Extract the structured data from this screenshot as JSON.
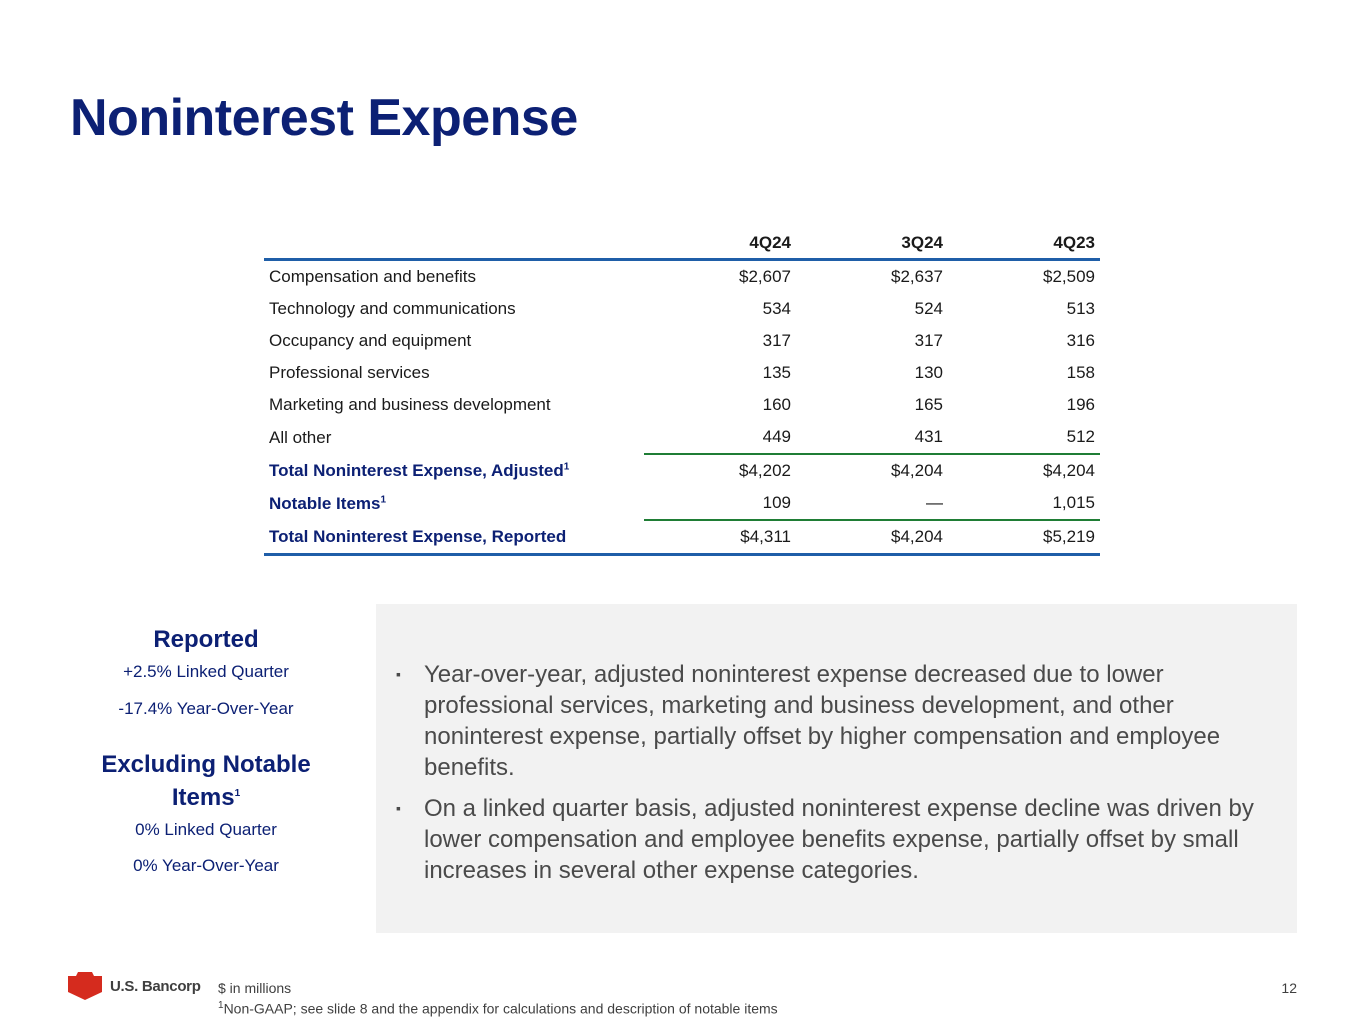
{
  "title": "Noninterest Expense",
  "table": {
    "headers": [
      "4Q24",
      "3Q24",
      "4Q23"
    ],
    "rows": [
      {
        "label": "Compensation and benefits",
        "values": [
          "$2,607",
          "$2,637",
          "$2,509"
        ]
      },
      {
        "label": "Technology and communications",
        "values": [
          "534",
          "524",
          "513"
        ]
      },
      {
        "label": "Occupancy and equipment",
        "values": [
          "317",
          "317",
          "316"
        ]
      },
      {
        "label": "Professional services",
        "values": [
          "135",
          "130",
          "158"
        ]
      },
      {
        "label": "Marketing and business development",
        "values": [
          "160",
          "165",
          "196"
        ]
      },
      {
        "label": "All other",
        "values": [
          "449",
          "431",
          "512"
        ]
      },
      {
        "label": "Total Noninterest Expense, Adjusted",
        "sup": "1",
        "values": [
          "$4,202",
          "$4,204",
          "$4,204"
        ]
      },
      {
        "label": "Notable Items",
        "sup": "1",
        "values": [
          "109",
          "—",
          "1,015"
        ]
      },
      {
        "label": "Total Noninterest Expense, Reported",
        "values": [
          "$4,311",
          "$4,204",
          "$5,219"
        ]
      }
    ]
  },
  "summary": {
    "reported_heading": "Reported",
    "reported_lq": "+2.5% Linked Quarter",
    "reported_yoy": "-17.4% Year-Over-Year",
    "excl_heading": "Excluding Notable Items",
    "excl_sup": "1",
    "excl_lq": "0% Linked Quarter",
    "excl_yoy": "0% Year-Over-Year"
  },
  "bullets": [
    "Year-over-year, adjusted noninterest expense decreased due to lower professional services, marketing and business development, and other noninterest expense, partially offset by higher compensation and employee benefits.",
    "On a linked quarter basis, adjusted noninterest expense decline was driven by lower compensation and employee benefits expense, partially offset by small increases in several other expense categories."
  ],
  "footer": {
    "brand": "U.S. Bancorp",
    "note1": "$ in millions",
    "note2_sup": "1",
    "note2": "Non-GAAP; see slide 8 and the appendix for calculations and description of notable items",
    "page_number": "12"
  },
  "colors": {
    "navy": "#0c2074",
    "blue_rule": "#1f5ea8",
    "green_rule": "#1f7d35",
    "logo_red": "#d52b1e"
  },
  "icons": {
    "logo": "usbank-shield-icon",
    "bullet": "square-bullet-icon"
  }
}
